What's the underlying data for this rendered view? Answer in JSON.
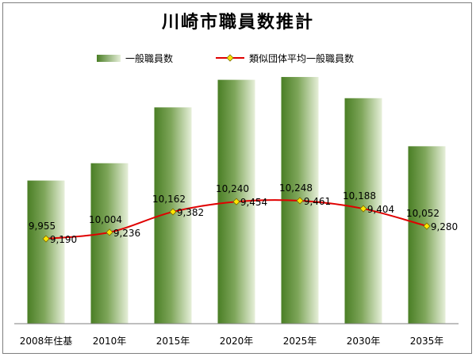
{
  "chart_data": {
    "type": "bar",
    "title": "川崎市職員数推計",
    "categories": [
      "2008年住基",
      "2010年",
      "2015年",
      "2020年",
      "2025年",
      "2030年",
      "2035年"
    ],
    "series": [
      {
        "name": "一般職員数",
        "type": "bar",
        "values": [
          9955,
          10004,
          10162,
          10240,
          10248,
          10188,
          10052
        ],
        "labels": [
          "9,955",
          "10,004",
          "10,162",
          "10,240",
          "10,248",
          "10,188",
          "10,052"
        ]
      },
      {
        "name": "類似団体平均一般職員数",
        "type": "line",
        "values": [
          9190,
          9236,
          9382,
          9454,
          9461,
          9404,
          9280
        ],
        "labels": [
          "9,190",
          "9,236",
          "9,382",
          "9,454",
          "9,461",
          "9,404",
          "9,280"
        ]
      }
    ],
    "legend": "top",
    "grid": false,
    "colors": {
      "bar_dark": "#4a7e25",
      "bar_light": "#e6efd9",
      "line": "#e00000",
      "marker": "#ffe600"
    }
  }
}
